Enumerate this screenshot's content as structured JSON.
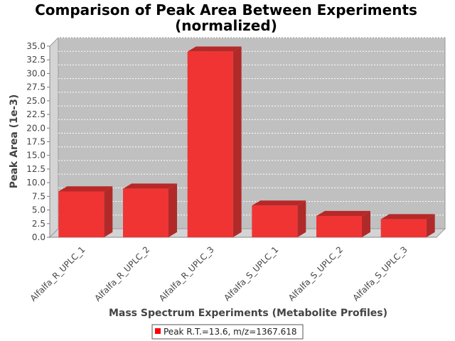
{
  "chart_data": {
    "type": "bar",
    "title_lines": [
      "Comparison of Peak Area Between Experiments",
      "(normalized)"
    ],
    "xlabel": "Mass Spectrum Experiments (Metabolite Profiles)",
    "ylabel": "Peak Area (1e-3)",
    "categories": [
      "Alfalfa_R_UPLC_1",
      "Alfalfa_R_UPLC_2",
      "Alfalfa_R_UPLC_3",
      "Alfalfa_S_UPLC_1",
      "Alfalfa_S_UPLC_2",
      "Alfalfa_S_UPLC_3"
    ],
    "series": [
      {
        "name": "Peak R.T.=13.6, m/z=1367.618",
        "values": [
          8.4,
          8.9,
          34.0,
          5.8,
          3.9,
          3.3
        ]
      }
    ],
    "ylim": [
      0,
      35
    ],
    "yticks": [
      "0.0",
      "2.5",
      "5.0",
      "7.5",
      "10.0",
      "12.5",
      "15.0",
      "17.5",
      "20.0",
      "22.5",
      "25.0",
      "27.5",
      "30.0",
      "32.5",
      "35.0"
    ],
    "grid": true,
    "legend": "bottom",
    "colors": {
      "bar_front": "#f03434",
      "bar_top": "#b82828",
      "bar_side": "#b02a2a",
      "plot_bg": "#c0c0c0",
      "wall": "#d4d4d4"
    }
  }
}
